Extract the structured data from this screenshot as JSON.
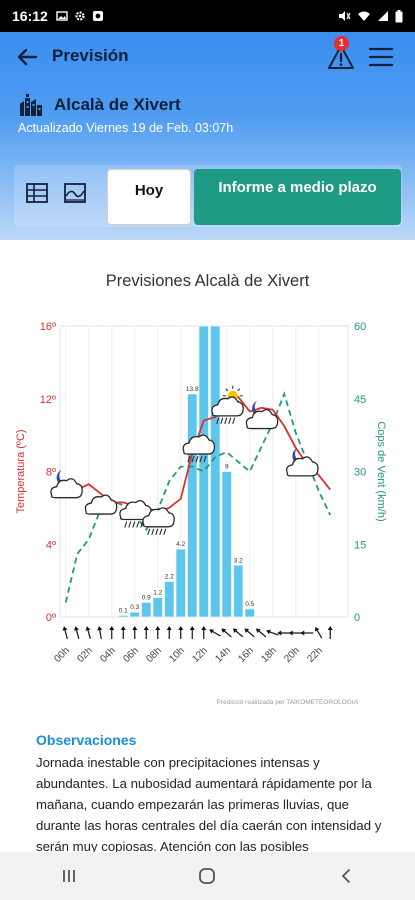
{
  "status_bar": {
    "time": "16:12",
    "left_icons": [
      "image-icon",
      "gear-icon",
      "sun-icon"
    ],
    "right_icons": [
      "mute-icon",
      "wifi-icon",
      "signal-icon",
      "battery-icon"
    ]
  },
  "header": {
    "title": "Previsión",
    "alert_count": "1",
    "location": "Alcalà de Xivert",
    "updated": "Actualizado Viernes 19 de Feb. 03:07h"
  },
  "tabs": {
    "today": "Hoy",
    "medium_term": "Informe a medio plazo"
  },
  "chart_data": {
    "type": "bar",
    "title": "Previsiones Alcalà de Xivert",
    "x_tick_labels": [
      "00h",
      "02h",
      "04h",
      "06h",
      "08h",
      "10h",
      "12h",
      "14h",
      "16h",
      "18h",
      "20h",
      "22h"
    ],
    "hours": [
      0,
      1,
      2,
      3,
      4,
      5,
      6,
      7,
      8,
      9,
      10,
      11,
      12,
      13,
      14,
      15,
      16,
      17,
      18,
      19,
      20,
      21,
      22,
      23
    ],
    "y_left_label": "Temperatura (ºC)",
    "y_left_ticks": [
      "0º",
      "4º",
      "8º",
      "12º",
      "16º"
    ],
    "y_left_range": [
      0,
      16
    ],
    "y_right_label": "Cops de Vent (km/h)",
    "y_right_ticks": [
      "0",
      "15",
      "30",
      "45",
      "60"
    ],
    "y_right_range": [
      0,
      60
    ],
    "precip": {
      "hours": [
        5,
        6,
        7,
        8,
        9,
        10,
        11,
        12,
        13,
        14,
        15,
        16
      ],
      "values": [
        0.1,
        0.3,
        0.9,
        1.2,
        2.2,
        4.2,
        13.8,
        18,
        18,
        9,
        3.2,
        0.5
      ],
      "labels": [
        "0.1",
        "0.3",
        "0.9",
        "1.2",
        "2.2",
        "4.2",
        "13.8",
        "",
        "",
        "9",
        "3.2",
        "0.5"
      ],
      "max": 18
    },
    "temperature": {
      "name": "Temperatura",
      "values": [
        7.0,
        7.0,
        7.3,
        6.8,
        6.3,
        6.3,
        6.1,
        6.0,
        5.8,
        6.0,
        6.5,
        9.0,
        10.8,
        11.0,
        12.0,
        12.1,
        11.3,
        11.5,
        11.4,
        10.5,
        9.3,
        8.4,
        7.8,
        7.0
      ]
    },
    "wind": {
      "name": "Cops de Vent",
      "values": [
        3,
        13,
        16,
        22,
        24,
        23,
        21,
        18,
        22,
        28,
        31,
        31,
        30,
        33,
        34,
        32,
        30,
        35,
        40,
        46,
        38,
        32,
        26,
        21
      ]
    },
    "weather_icons": [
      {
        "hour": 0,
        "temp": 7.0,
        "icon": "moon-cloud-icon"
      },
      {
        "hour": 3,
        "temp": 6.1,
        "icon": "cloud-icon"
      },
      {
        "hour": 6,
        "temp": 5.8,
        "icon": "rain-cloud-icon"
      },
      {
        "hour": 8,
        "temp": 5.4,
        "icon": "rain-cloud-icon"
      },
      {
        "hour": 11.5,
        "temp": 9.4,
        "icon": "rain-cloud-icon"
      },
      {
        "hour": 14,
        "temp": 11.5,
        "icon": "sun-rain-cloud-icon"
      },
      {
        "hour": 17,
        "temp": 10.8,
        "icon": "moon-cloud-icon"
      },
      {
        "hour": 20.5,
        "temp": 8.2,
        "icon": "moon-cloud-icon"
      }
    ],
    "wind_arrows": {
      "hours": [
        0,
        1,
        2,
        3,
        4,
        5,
        6,
        7,
        8,
        9,
        10,
        11,
        12,
        13,
        14,
        15,
        16,
        17,
        18,
        19,
        20,
        21,
        22,
        23
      ],
      "angles_deg": [
        -15,
        -15,
        -15,
        -10,
        0,
        0,
        0,
        0,
        0,
        0,
        0,
        0,
        0,
        -60,
        -50,
        -50,
        -50,
        -50,
        -70,
        -90,
        -90,
        -90,
        -30,
        0
      ]
    },
    "colors": {
      "bars": "#5ec6ec",
      "temperature": "#dc3030",
      "wind": "#1e9a7d"
    },
    "attribution": "Predicció realitzada per TAIKOMETEOROLOGIA"
  },
  "observations": {
    "title": "Observaciones",
    "text": "Jornada inestable con precipitaciones intensas y abundantes. La nubosidad aumentará rápidamente por la mañana, cuando empezarán las primeras lluvias, que durante las horas centrales del día caerán con intensidad y serán muy copiosas. Atención con las posibles"
  },
  "nav_bar": {
    "buttons": [
      "recent-apps-icon",
      "home-icon",
      "back-icon"
    ]
  }
}
